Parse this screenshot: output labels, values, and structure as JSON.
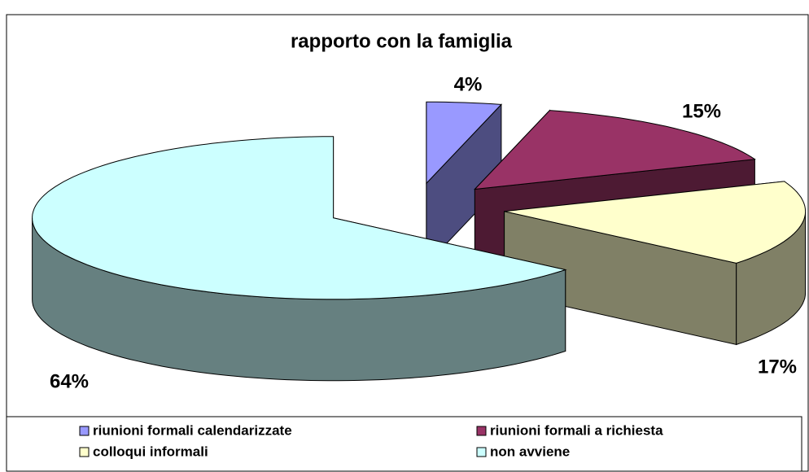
{
  "chart_data": {
    "type": "pie",
    "title": "rapporto con la famiglia",
    "categories": [
      "riunioni formali calendarizzate",
      "riunioni formali a richiesta",
      "colloqui informali",
      "non avviene"
    ],
    "values": [
      4,
      15,
      17,
      64
    ],
    "value_labels": [
      "4%",
      "15%",
      "17%",
      "64%"
    ],
    "colors": [
      "#9999FF",
      "#993366",
      "#FFFFCC",
      "#CCFFFF"
    ],
    "legend": "bottom"
  }
}
